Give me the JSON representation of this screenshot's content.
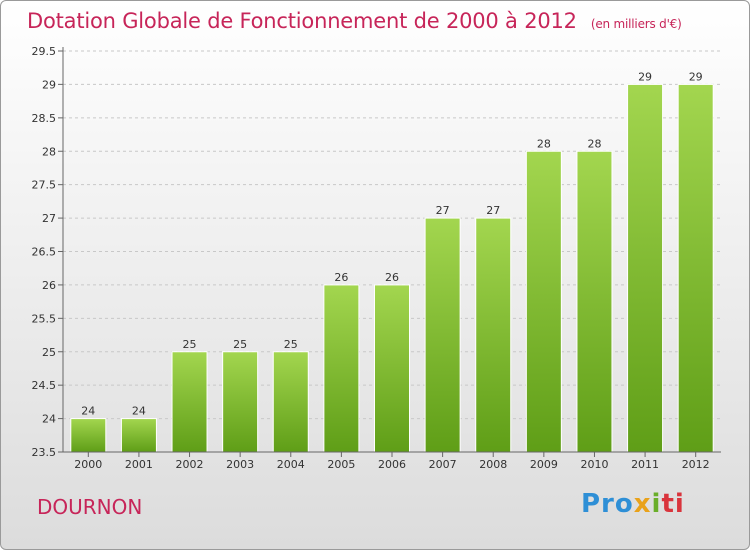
{
  "header": {
    "title": "Dotation Globale de Fonctionnement de 2000 à 2012",
    "unit": "(en milliers d'€)"
  },
  "footer": {
    "commune": "DOURNON",
    "logo": {
      "part1": "Pro",
      "part2": "x",
      "part3": "i",
      "part4": "ti"
    }
  },
  "colors": {
    "title": "#c72559",
    "bar_top": "#a3d64f",
    "bar_bottom": "#5f9e17",
    "grid": "#c8c8c8"
  },
  "chart_data": {
    "type": "bar",
    "title": "Dotation Globale de Fonctionnement de 2000 à 2012",
    "subtitle": "(en milliers d'€)",
    "xlabel": "",
    "ylabel": "",
    "ylim": [
      23.5,
      29.5
    ],
    "yticks": [
      "23.5",
      "24",
      "24.5",
      "25",
      "25.5",
      "26",
      "26.5",
      "27",
      "27.5",
      "28",
      "28.5",
      "29",
      "29.5"
    ],
    "grid": true,
    "categories": [
      "2000",
      "2001",
      "2002",
      "2003",
      "2004",
      "2005",
      "2006",
      "2007",
      "2008",
      "2009",
      "2010",
      "2011",
      "2012"
    ],
    "values": [
      24,
      24,
      25,
      25,
      25,
      26,
      26,
      27,
      27,
      28,
      28,
      29,
      29
    ]
  }
}
